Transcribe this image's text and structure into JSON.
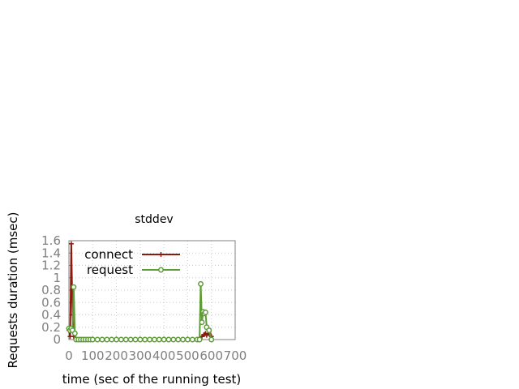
{
  "chart_data": {
    "type": "line",
    "title": "stddev",
    "xlabel": "time (sec of the running test)",
    "ylabel": "Requests duration (msec)",
    "xlim": [
      0,
      700
    ],
    "ylim": [
      0,
      1.6
    ],
    "xticks": [
      0,
      100,
      200,
      300,
      400,
      500,
      600,
      700
    ],
    "xtick_labels": [
      "0",
      "100",
      "200",
      "300",
      "400",
      "500",
      "600",
      "700"
    ],
    "yticks": [
      0,
      0.2,
      0.4,
      0.6,
      0.8,
      1,
      1.2,
      1.4,
      1.6
    ],
    "ytick_labels": [
      "0",
      "0.2",
      "0.4",
      "0.6",
      "0.8",
      "1",
      "1.2",
      "1.4",
      "1.6"
    ],
    "grid": true,
    "legend_position": "top-left",
    "series": [
      {
        "name": "connect",
        "color": "#8b1a0e",
        "marker": "plus",
        "x": [
          0,
          5,
          10,
          15,
          20,
          25,
          30,
          40,
          50,
          60,
          70,
          80,
          90,
          100,
          120,
          140,
          160,
          180,
          200,
          220,
          240,
          260,
          280,
          300,
          320,
          340,
          360,
          380,
          400,
          420,
          440,
          460,
          480,
          500,
          520,
          540,
          550,
          560,
          570,
          575,
          580,
          590,
          600
        ],
        "y": [
          0.15,
          0.05,
          1.55,
          0.4,
          0.05,
          0.1,
          0,
          0,
          0,
          0,
          0,
          0,
          0,
          0,
          0,
          0,
          0,
          0,
          0,
          0,
          0,
          0,
          0,
          0,
          0,
          0,
          0,
          0,
          0,
          0,
          0,
          0,
          0,
          0,
          0,
          0,
          0.02,
          0.05,
          0.08,
          0.1,
          0.07,
          0.1,
          0.05
        ]
      },
      {
        "name": "request",
        "color": "#5e9c36",
        "marker": "circle",
        "x": [
          0,
          5,
          10,
          15,
          20,
          25,
          30,
          40,
          50,
          60,
          70,
          80,
          90,
          100,
          120,
          140,
          160,
          180,
          200,
          220,
          240,
          260,
          280,
          300,
          320,
          340,
          360,
          380,
          400,
          420,
          440,
          460,
          480,
          500,
          520,
          540,
          550,
          555,
          560,
          565,
          570,
          575,
          580,
          590,
          600
        ],
        "y": [
          0.18,
          0.15,
          0.18,
          0.15,
          0.85,
          0.1,
          0,
          0,
          0,
          0,
          0,
          0,
          0,
          0,
          0,
          0,
          0,
          0,
          0,
          0,
          0,
          0,
          0,
          0,
          0,
          0,
          0,
          0,
          0,
          0,
          0,
          0,
          0,
          0,
          0,
          0,
          0,
          0.9,
          0.28,
          0.45,
          0.42,
          0.44,
          0.2,
          0.15,
          0
        ]
      }
    ]
  }
}
